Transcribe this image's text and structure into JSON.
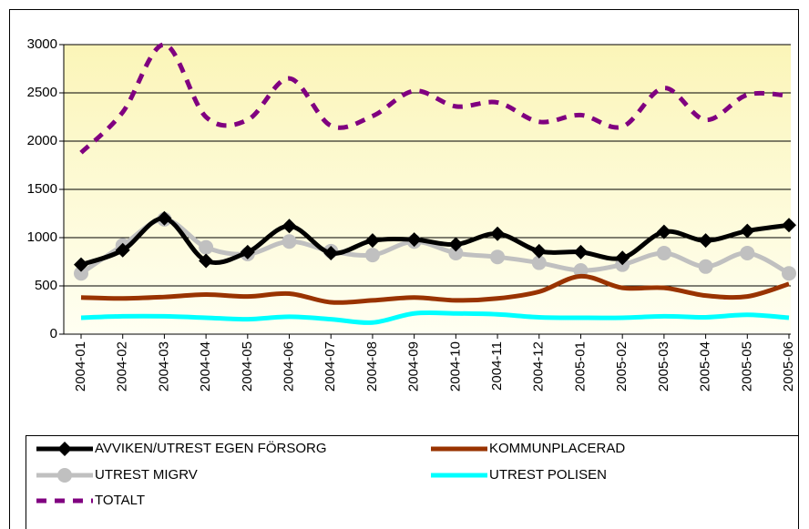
{
  "chart_data": {
    "type": "line",
    "categories": [
      "2004-01",
      "2004-02",
      "2004-03",
      "2004-04",
      "2004-05",
      "2004-06",
      "2004-07",
      "2004-08",
      "2004-09",
      "2004-10",
      "2004-11",
      "2004-12",
      "2005-01",
      "2005-02",
      "2005-03",
      "2005-04",
      "2005-05",
      "2005-06"
    ],
    "series": [
      {
        "name": "AVVIKEN/UTREST EGEN FÖRSORG",
        "color": "#000000",
        "marker": "diamond",
        "values": [
          720,
          870,
          1200,
          760,
          850,
          1120,
          840,
          970,
          980,
          930,
          1040,
          860,
          850,
          790,
          1060,
          970,
          1070,
          1130
        ]
      },
      {
        "name": "KOMMUNPLACERAD",
        "color": "#993300",
        "values": [
          380,
          370,
          385,
          410,
          390,
          420,
          330,
          350,
          380,
          350,
          370,
          440,
          600,
          480,
          480,
          400,
          390,
          520
        ]
      },
      {
        "name": "UTREST MIGRV",
        "color": "#c0c0c0",
        "marker": "circle",
        "values": [
          630,
          920,
          1190,
          900,
          830,
          960,
          860,
          820,
          960,
          840,
          800,
          740,
          660,
          720,
          840,
          700,
          840,
          630
        ]
      },
      {
        "name": "UTREST POLISEN",
        "color": "#00ffff",
        "values": [
          170,
          185,
          185,
          170,
          155,
          180,
          155,
          120,
          215,
          215,
          205,
          175,
          170,
          170,
          185,
          175,
          200,
          170
        ]
      },
      {
        "name": "TOTALT",
        "color": "#800080",
        "dashed": true,
        "values": [
          1880,
          2300,
          3000,
          2250,
          2220,
          2650,
          2160,
          2260,
          2520,
          2360,
          2400,
          2200,
          2270,
          2150,
          2550,
          2220,
          2480,
          2470
        ]
      }
    ],
    "ylim": [
      0,
      3000
    ],
    "yticks": [
      0,
      500,
      1000,
      1500,
      2000,
      2500,
      3000
    ],
    "grid": true,
    "legend": "bottom"
  }
}
